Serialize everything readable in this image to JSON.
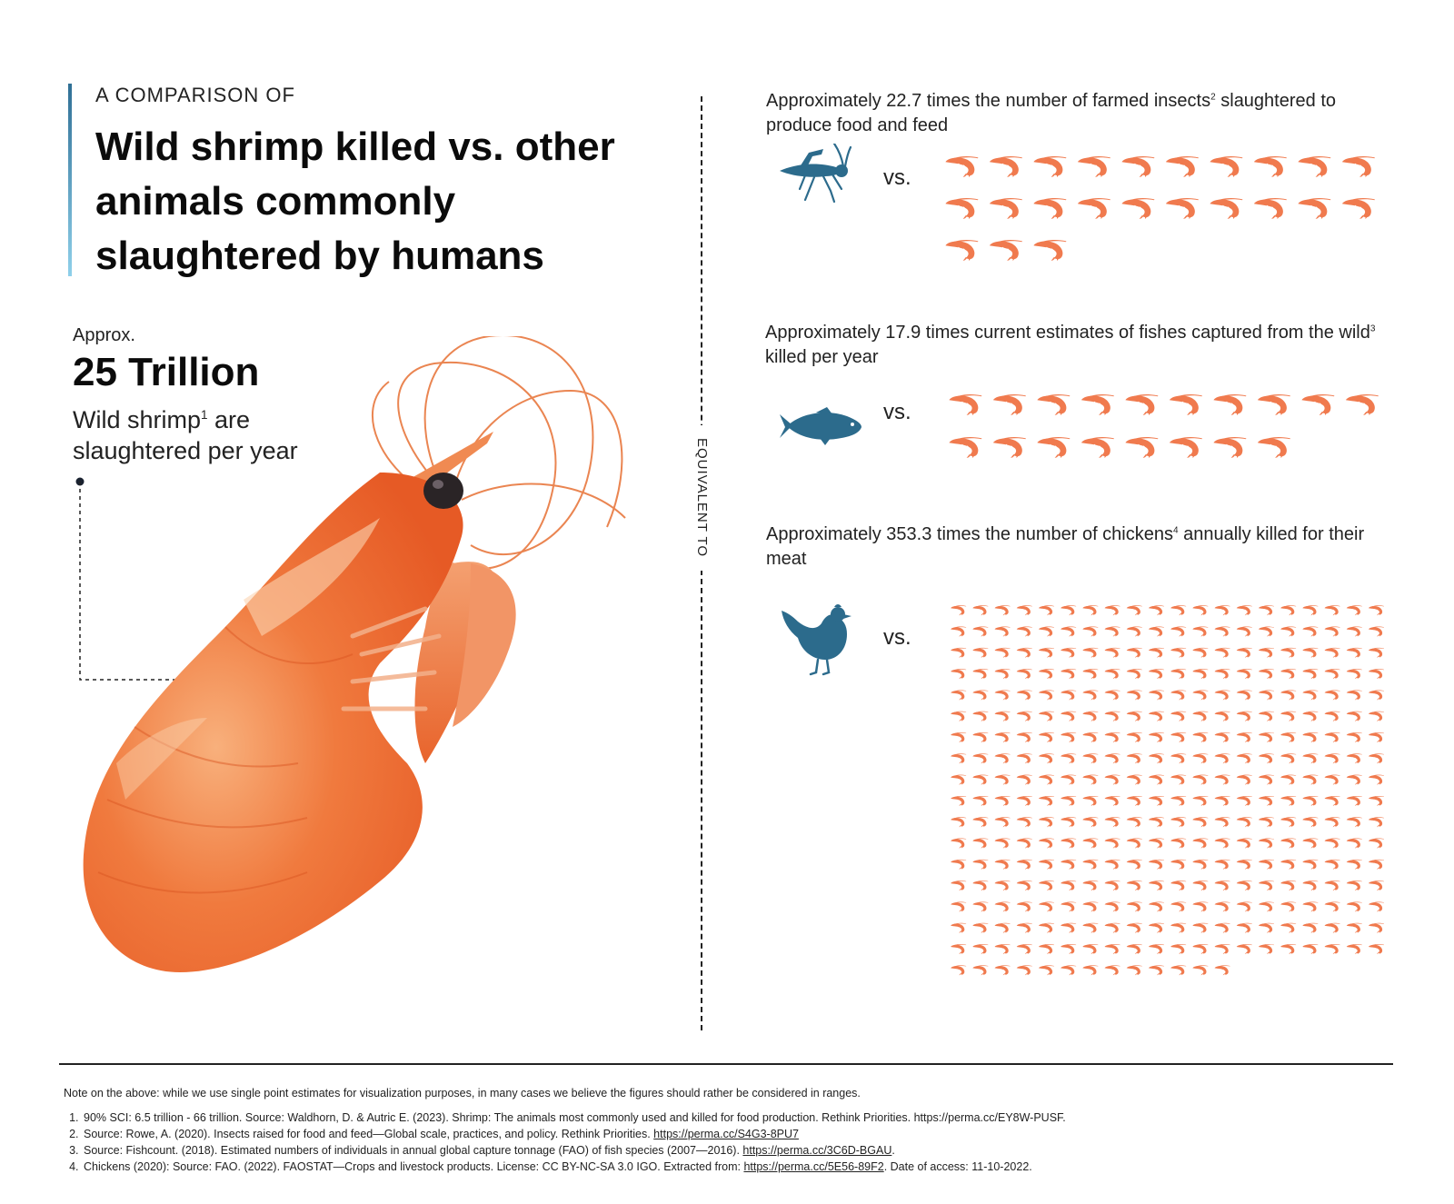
{
  "header": {
    "kicker": "A COMPARISON OF",
    "title": "Wild shrimp killed vs. other animals commonly slaughtered by humans"
  },
  "main_stat": {
    "approx": "Approx.",
    "value": "25 Trillion",
    "line1_pre": "Wild shrimp",
    "line1_sup": "1",
    "line1_post": " are",
    "line2": "slaughtered per year"
  },
  "divider_label": "EQUIVALENT TO",
  "comparisons": [
    {
      "text_pre": "Approximately 22.7 times the number of farmed insects",
      "sup": "2",
      "text_post": " slaughtered to produce food and feed",
      "vs": "vs.",
      "icon": "grasshopper-icon",
      "multiplier": 22.7,
      "shrimp_icons": 23
    },
    {
      "text_pre": "Approximately 17.9 times current estimates of fishes captured from the wild",
      "sup": "3",
      "text_post": " killed per year",
      "vs": "vs.",
      "icon": "fish-icon",
      "multiplier": 17.9,
      "shrimp_icons": 18
    },
    {
      "text_pre": "Approximately 353.3 times the number of chickens",
      "sup": "4",
      "text_post": " annually killed for their meat",
      "vs": "vs.",
      "icon": "chicken-icon",
      "multiplier": 353.3,
      "shrimp_icons": 353
    }
  ],
  "chart_data": {
    "type": "table",
    "headline": "25 Trillion wild shrimp slaughtered per year",
    "rows": [
      {
        "label": "farmed insects",
        "multiplier": 22.7
      },
      {
        "label": "fishes captured from the wild",
        "multiplier": 17.9
      },
      {
        "label": "chickens",
        "multiplier": 353.3
      }
    ]
  },
  "colors": {
    "shrimp": "#f07a4e",
    "animal": "#2c6b8c",
    "accent_bar_top": "#2f6f95",
    "accent_bar_bottom": "#8fd0ea"
  },
  "footer": {
    "note": "Note on the above: while we use single point estimates for visualization purposes, in many cases we believe the figures should rather be considered in ranges.",
    "footnotes": [
      {
        "text": "90% SCI: 6.5 trillion - 66 trillion. Source: Waldhorn, D. & Autric E. (2023). Shrimp: The animals most commonly used and killed for food production. Rethink Priorities. https://perma.cc/EY8W-PUSF.",
        "link": "",
        "after": ""
      },
      {
        "text": "Source: Rowe, A. (2020). Insects raised for food and feed—Global scale, practices, and policy. Rethink Priorities. ",
        "link": "https://perma.cc/S4G3-8PU7",
        "after": ""
      },
      {
        "text": "Source: Fishcount. (2018). Estimated numbers of individuals in annual global capture tonnage (FAO) of fish species (2007—2016). ",
        "link": "https://perma.cc/3C6D-BGAU",
        "after": "."
      },
      {
        "text": "Chickens (2020): Source: FAO. (2022). FAOSTAT—Crops and livestock products. License: CC BY-NC-SA 3.0 IGO. Extracted from: ",
        "link": "https://perma.cc/5E56-89F2",
        "after": ". Date of access: 11-10-2022."
      }
    ]
  }
}
